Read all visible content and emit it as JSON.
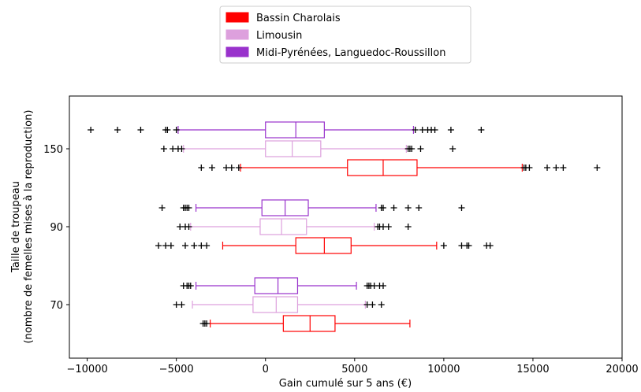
{
  "chart_data": {
    "type": "boxplot",
    "orientation": "horizontal",
    "xlabel": "Gain cumulé sur 5 ans (€)",
    "ylabel_line1": "Taille de troupeau",
    "ylabel_line2": "(nombre de femelles mises à la reproduction)",
    "xlim": [
      -11000,
      20000
    ],
    "xticks": [
      -10000,
      -5000,
      0,
      5000,
      10000,
      15000,
      20000
    ],
    "xtick_labels": [
      "−10000",
      "−5000",
      "0",
      "5000",
      "10000",
      "15000",
      "20000"
    ],
    "ytick_labels": [
      "70",
      "90",
      "150"
    ],
    "legend_placement": "top-center",
    "series": [
      {
        "name": "Bassin Charolais",
        "color": "#ff0000"
      },
      {
        "name": "Limousin",
        "color": "#dda0dd"
      },
      {
        "name": "Midi-Pyrénées, Languedoc-Roussillon",
        "color": "#9932cc"
      }
    ],
    "groups": [
      {
        "label": "150",
        "boxes": [
          {
            "series": 0,
            "whislo": -1400,
            "q1": 4600,
            "med": 6600,
            "q3": 8500,
            "whishi": 14400,
            "fliers": [
              -3600,
              -3000,
              -2200,
              -1900,
              -1500,
              14500,
              14600,
              14800,
              15800,
              16300,
              16700,
              18600
            ]
          },
          {
            "series": 1,
            "whislo": -4600,
            "q1": 0,
            "med": 1500,
            "q3": 3100,
            "whishi": 7900,
            "fliers": [
              -5700,
              -5200,
              -4900,
              -4700,
              8000,
              8100,
              8200,
              8700,
              10500
            ]
          },
          {
            "series": 2,
            "whislo": -4900,
            "q1": 0,
            "med": 1700,
            "q3": 3300,
            "whishi": 8300,
            "fliers": [
              -9800,
              -8300,
              -7000,
              -5600,
              -5500,
              -5000,
              8400,
              8800,
              9100,
              9300,
              9500,
              10400,
              12100
            ]
          }
        ]
      },
      {
        "label": "90",
        "boxes": [
          {
            "series": 0,
            "whislo": -2400,
            "q1": 1700,
            "med": 3300,
            "q3": 4800,
            "whishi": 9600,
            "fliers": [
              -6000,
              -5600,
              -5300,
              -4500,
              -4000,
              -3600,
              -3300,
              10000,
              11000,
              11300,
              11400,
              12400,
              12600
            ]
          },
          {
            "series": 1,
            "whislo": -4200,
            "q1": -300,
            "med": 900,
            "q3": 2300,
            "whishi": 6100,
            "fliers": [
              -4800,
              -4500,
              -4300,
              6300,
              6400,
              6600,
              6900,
              8000
            ]
          },
          {
            "series": 2,
            "whislo": -3900,
            "q1": -200,
            "med": 1100,
            "q3": 2400,
            "whishi": 6200,
            "fliers": [
              -5800,
              -4600,
              -4500,
              -4400,
              -4300,
              6500,
              6600,
              7200,
              8000,
              8600,
              11000
            ]
          }
        ]
      },
      {
        "label": "70",
        "boxes": [
          {
            "series": 0,
            "whislo": -3100,
            "q1": 1000,
            "med": 2500,
            "q3": 3900,
            "whishi": 8100,
            "fliers": [
              -3500,
              -3400,
              -3300
            ]
          },
          {
            "series": 1,
            "whislo": -4100,
            "q1": -700,
            "med": 600,
            "q3": 1800,
            "whishi": 5600,
            "fliers": [
              -5000,
              -4700,
              5700,
              6000,
              6500
            ]
          },
          {
            "series": 2,
            "whislo": -3900,
            "q1": -600,
            "med": 700,
            "q3": 1800,
            "whishi": 5100,
            "fliers": [
              -4600,
              -4400,
              -4300,
              -4200,
              5700,
              5800,
              5900,
              6100,
              6400,
              6600
            ]
          }
        ]
      }
    ]
  }
}
